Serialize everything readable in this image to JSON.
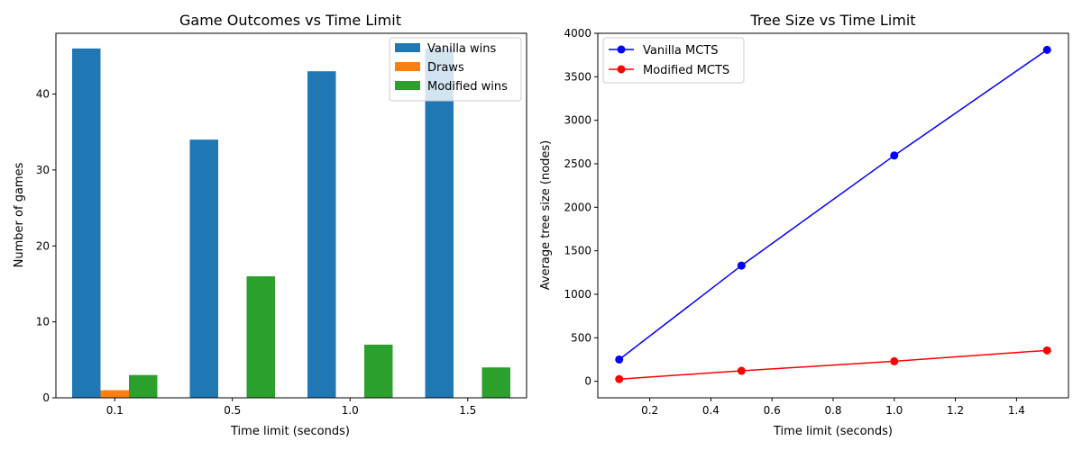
{
  "chart_data": [
    {
      "type": "bar",
      "title": "Game Outcomes vs Time Limit",
      "xlabel": "Time limit (seconds)",
      "ylabel": "Number of games",
      "categories": [
        "0.1",
        "0.5",
        "1.0",
        "1.5"
      ],
      "ylim": [
        0,
        48
      ],
      "yticks": [
        0,
        10,
        20,
        30,
        40
      ],
      "legend_position": "top-right",
      "grid": false,
      "series": [
        {
          "name": "Vanilla wins",
          "color": "#1f77b4",
          "values": [
            46,
            34,
            43,
            46
          ]
        },
        {
          "name": "Draws",
          "color": "#ff7f0e",
          "values": [
            1,
            0,
            0,
            0
          ]
        },
        {
          "name": "Modified wins",
          "color": "#2ca02c",
          "values": [
            3,
            16,
            7,
            4
          ]
        }
      ]
    },
    {
      "type": "line",
      "title": "Tree Size vs Time Limit",
      "xlabel": "Time limit (seconds)",
      "ylabel": "Average tree size (nodes)",
      "xlim": [
        0.03,
        1.57
      ],
      "ylim": [
        -190,
        4000
      ],
      "xticks": [
        0.2,
        0.4,
        0.6,
        0.8,
        1.0,
        1.2,
        1.4
      ],
      "xtick_labels": [
        "0.2",
        "0.4",
        "0.6",
        "0.8",
        "1.0",
        "1.2",
        "1.4"
      ],
      "yticks": [
        0,
        500,
        1000,
        1500,
        2000,
        2500,
        3000,
        3500,
        4000
      ],
      "legend_position": "top-left",
      "grid": false,
      "series": [
        {
          "name": "Vanilla MCTS",
          "color": "#0000ff",
          "x": [
            0.1,
            0.5,
            1.0,
            1.5
          ],
          "y": [
            250,
            1330,
            2595,
            3810
          ]
        },
        {
          "name": "Modified MCTS",
          "color": "#ff0000",
          "x": [
            0.1,
            0.5,
            1.0,
            1.5
          ],
          "y": [
            25,
            120,
            230,
            355
          ]
        }
      ]
    }
  ]
}
